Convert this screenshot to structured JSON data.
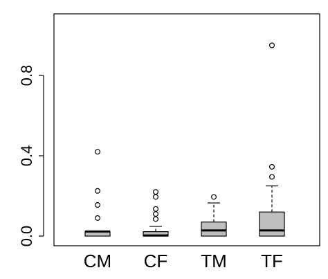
{
  "chart_data": {
    "type": "boxplot",
    "title": "",
    "xlabel": "",
    "ylabel": "",
    "ylim": [
      -0.005,
      1.0
    ],
    "yticks": [
      0.0,
      0.4,
      0.8
    ],
    "ytick_labels": [
      "0.0",
      "0.4",
      "0.8"
    ],
    "grid": false,
    "legend": "none",
    "box_fill": "#bebebe",
    "categories": [
      "CM",
      "CF",
      "TM",
      "TF"
    ],
    "boxes": [
      {
        "name": "CM",
        "whisker_low": 0.0,
        "q1": 0.0,
        "median": 0.023,
        "q3": 0.023,
        "whisker_high": 0.023,
        "outliers": [
          0.09,
          0.155,
          0.225,
          0.42
        ]
      },
      {
        "name": "CF",
        "whisker_low": 0.0,
        "q1": 0.0,
        "median": 0.003,
        "q3": 0.022,
        "whisker_high": 0.048,
        "outliers": [
          0.085,
          0.11,
          0.135,
          0.195,
          0.22
        ]
      },
      {
        "name": "TM",
        "whisker_low": 0.0,
        "q1": 0.0,
        "median": 0.028,
        "q3": 0.07,
        "whisker_high": 0.165,
        "outliers": [
          0.195
        ]
      },
      {
        "name": "TF",
        "whisker_low": 0.0,
        "q1": 0.0,
        "median": 0.028,
        "q3": 0.12,
        "whisker_high": 0.25,
        "outliers": [
          0.295,
          0.345,
          0.95
        ]
      }
    ]
  }
}
